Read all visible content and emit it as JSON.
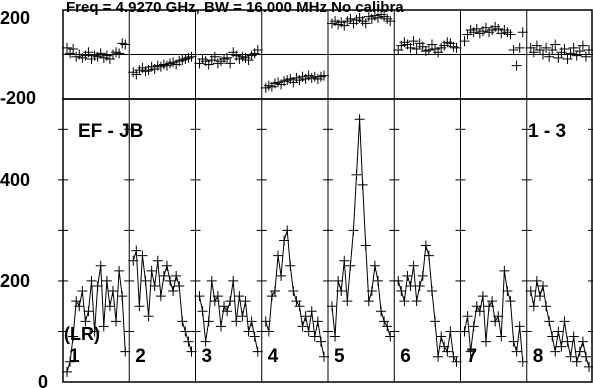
{
  "chart_data": {
    "type": "line",
    "title": "Freq = 4.9270 GHz, BW = 16.000 MHz   No calibra",
    "baseline_label": "EF - JB",
    "polarization_label": "(LR)",
    "scan_label": "1 - 3",
    "phase_panel": {
      "ylim": [
        -200,
        200
      ],
      "ytick_labels": [
        "200",
        "-200"
      ],
      "reference_line": 0
    },
    "amp_panel": {
      "ylim": [
        0,
        560
      ],
      "ytick_labels": [
        "400",
        "200",
        "0"
      ]
    },
    "channel_labels": [
      "1",
      "2",
      "3",
      "4",
      "5",
      "6",
      "7",
      "8"
    ],
    "x_per_channel": [
      1,
      2,
      3,
      4,
      5,
      6,
      7,
      8,
      9,
      10,
      11,
      12,
      13,
      14,
      15,
      16,
      17,
      18,
      19,
      20
    ],
    "series": [
      {
        "channel": "1",
        "amplitude": [
          20,
          40,
          90,
          160,
          150,
          180,
          120,
          140,
          200,
          100,
          190,
          230,
          110,
          200,
          150,
          180,
          120,
          220,
          170,
          60
        ],
        "phase": [
          30,
          5,
          25,
          -10,
          0,
          -15,
          -5,
          10,
          -20,
          -5,
          -10,
          5,
          -15,
          -5,
          -20,
          0,
          10,
          5,
          50,
          45
        ]
      },
      {
        "channel": "2",
        "amplitude": [
          240,
          260,
          150,
          250,
          200,
          130,
          220,
          190,
          240,
          170,
          210,
          230,
          200,
          180,
          210,
          190,
          120,
          100,
          80,
          60
        ],
        "phase": [
          -80,
          -90,
          -70,
          -60,
          -75,
          -70,
          -55,
          -65,
          -50,
          -55,
          -45,
          -50,
          -40,
          -35,
          -45,
          -30,
          -25,
          -20,
          -15,
          -10
        ]
      },
      {
        "channel": "3",
        "amplitude": [
          170,
          140,
          80,
          120,
          200,
          160,
          170,
          110,
          150,
          140,
          160,
          200,
          120,
          170,
          130,
          160,
          100,
          120,
          90,
          60
        ],
        "phase": [
          -40,
          -20,
          -30,
          -45,
          -25,
          -10,
          -40,
          -30,
          -20,
          -15,
          -40,
          10,
          -5,
          -20,
          -10,
          -15,
          -25,
          -5,
          5,
          20
        ]
      },
      {
        "channel": "4",
        "amplitude": [
          120,
          100,
          170,
          180,
          250,
          210,
          280,
          300,
          230,
          180,
          160,
          150,
          110,
          130,
          100,
          140,
          90,
          120,
          80,
          50
        ],
        "phase": [
          -150,
          -140,
          -145,
          -130,
          -125,
          -135,
          -120,
          -115,
          -110,
          -125,
          -105,
          -115,
          -100,
          -110,
          -95,
          -105,
          -100,
          -110,
          -100,
          -95
        ]
      },
      {
        "channel": "5",
        "amplitude": [
          150,
          90,
          200,
          180,
          240,
          160,
          230,
          300,
          410,
          520,
          390,
          270,
          160,
          180,
          230,
          200,
          140,
          120,
          110,
          90
        ],
        "phase": [
          140,
          150,
          135,
          145,
          130,
          150,
          160,
          140,
          155,
          165,
          150,
          140,
          170,
          160,
          175,
          165,
          180,
          170,
          160,
          150
        ]
      },
      {
        "channel": "6",
        "amplitude": [
          200,
          180,
          160,
          210,
          190,
          230,
          160,
          190,
          210,
          270,
          250,
          180,
          120,
          50,
          90,
          70,
          60,
          100,
          50,
          40
        ],
        "phase": [
          20,
          40,
          55,
          45,
          30,
          60,
          25,
          50,
          35,
          15,
          20,
          45,
          25,
          10,
          30,
          40,
          55,
          50,
          35,
          30
        ]
      },
      {
        "channel": "7",
        "amplitude": [
          100,
          130,
          60,
          110,
          150,
          140,
          170,
          80,
          150,
          160,
          120,
          130,
          90,
          220,
          180,
          160,
          80,
          60,
          110,
          40
        ],
        "phase": [
          60,
          90,
          110,
          100,
          115,
          95,
          105,
          120,
          100,
          110,
          125,
          115,
          95,
          110,
          100,
          90,
          20,
          -50,
          30,
          100
        ]
      },
      {
        "channel": "8",
        "amplitude": [
          180,
          150,
          200,
          170,
          190,
          150,
          120,
          90,
          60,
          100,
          70,
          120,
          80,
          50,
          90,
          40,
          60,
          80,
          50,
          30
        ],
        "phase": [
          30,
          10,
          40,
          20,
          0,
          30,
          -10,
          20,
          45,
          -15,
          10,
          25,
          -20,
          5,
          30,
          -5,
          15,
          40,
          -10,
          20
        ]
      }
    ]
  }
}
